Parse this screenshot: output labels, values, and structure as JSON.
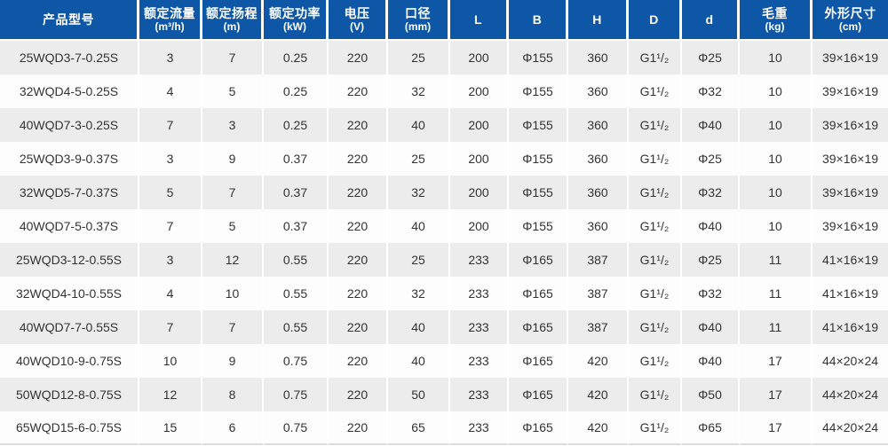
{
  "colors": {
    "header_bg": "#0e57a6",
    "header_text": "#ffffff",
    "row_alt_bg": "#ececec",
    "row_bg": "#fdfdfd",
    "body_text": "#333333",
    "separator": "#ffffff",
    "bottom_border": "#dcdcdc"
  },
  "chart_data": {
    "type": "table",
    "title": "",
    "columns": [
      {
        "key": "product-model",
        "label": "产品型号",
        "unit": ""
      },
      {
        "key": "rated-flow",
        "label": "额定流量",
        "unit": "(m³/h)"
      },
      {
        "key": "rated-head",
        "label": "额定扬程",
        "unit": "(m)"
      },
      {
        "key": "rated-power",
        "label": "额定功率",
        "unit": "(kW)"
      },
      {
        "key": "voltage",
        "label": "电压",
        "unit": "(V)"
      },
      {
        "key": "bore-diameter",
        "label": "口径",
        "unit": "(mm)"
      },
      {
        "key": "dim-l",
        "label": "L",
        "unit": ""
      },
      {
        "key": "dim-b",
        "label": "B",
        "unit": ""
      },
      {
        "key": "dim-h",
        "label": "H",
        "unit": ""
      },
      {
        "key": "dim-d-upper",
        "label": "D",
        "unit": ""
      },
      {
        "key": "dim-d-lower",
        "label": "d",
        "unit": ""
      },
      {
        "key": "gross-weight",
        "label": "毛重",
        "unit": "(kg)"
      },
      {
        "key": "overall-size",
        "label": "外形尺寸",
        "unit": "(cm)"
      }
    ],
    "rows": [
      [
        "25WQD3-7-0.25S",
        "3",
        "7",
        "0.25",
        "220",
        "25",
        "200",
        "Φ155",
        "360",
        "G1¹/₂",
        "Φ25",
        "10",
        "39×16×19"
      ],
      [
        "32WQD4-5-0.25S",
        "4",
        "5",
        "0.25",
        "220",
        "32",
        "200",
        "Φ155",
        "360",
        "G1¹/₂",
        "Φ32",
        "10",
        "39×16×19"
      ],
      [
        "40WQD7-3-0.25S",
        "7",
        "3",
        "0.25",
        "220",
        "40",
        "200",
        "Φ155",
        "360",
        "G1¹/₂",
        "Φ40",
        "10",
        "39×16×19"
      ],
      [
        "25WQD3-9-0.37S",
        "3",
        "9",
        "0.37",
        "220",
        "25",
        "200",
        "Φ155",
        "360",
        "G1¹/₂",
        "Φ25",
        "10",
        "39×16×19"
      ],
      [
        "32WQD5-7-0.37S",
        "5",
        "7",
        "0.37",
        "220",
        "32",
        "200",
        "Φ155",
        "360",
        "G1¹/₂",
        "Φ32",
        "10",
        "39×16×19"
      ],
      [
        "40WQD7-5-0.37S",
        "7",
        "5",
        "0.37",
        "220",
        "40",
        "200",
        "Φ155",
        "360",
        "G1¹/₂",
        "Φ40",
        "10",
        "39×16×19"
      ],
      [
        "25WQD3-12-0.55S",
        "3",
        "12",
        "0.55",
        "220",
        "25",
        "233",
        "Φ165",
        "387",
        "G1¹/₂",
        "Φ25",
        "11",
        "41×16×19"
      ],
      [
        "32WQD4-10-0.55S",
        "4",
        "10",
        "0.55",
        "220",
        "32",
        "233",
        "Φ165",
        "387",
        "G1¹/₂",
        "Φ32",
        "11",
        "41×16×19"
      ],
      [
        "40WQD7-7-0.55S",
        "7",
        "7",
        "0.55",
        "220",
        "40",
        "233",
        "Φ165",
        "387",
        "G1¹/₂",
        "Φ40",
        "11",
        "41×16×19"
      ],
      [
        "40WQD10-9-0.75S",
        "10",
        "9",
        "0.75",
        "220",
        "40",
        "233",
        "Φ165",
        "420",
        "G1¹/₂",
        "Φ40",
        "17",
        "44×20×24"
      ],
      [
        "50WQD12-8-0.75S",
        "12",
        "8",
        "0.75",
        "220",
        "50",
        "233",
        "Φ165",
        "420",
        "G1¹/₂",
        "Φ50",
        "17",
        "44×20×24"
      ],
      [
        "65WQD15-6-0.75S",
        "15",
        "6",
        "0.75",
        "220",
        "65",
        "233",
        "Φ165",
        "420",
        "G1¹/₂",
        "Φ65",
        "17",
        "44×20×24"
      ]
    ]
  }
}
